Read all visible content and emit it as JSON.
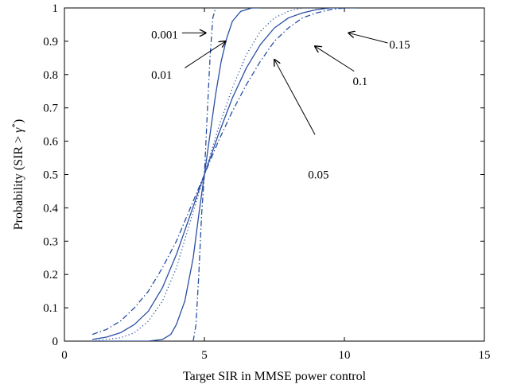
{
  "chart_data": {
    "type": "line",
    "xlabel": "Target SIR in MMSE power control",
    "ylabel_parts": [
      "Probability (SIR > ",
      "γ",
      "*",
      ")"
    ],
    "xlim": [
      0,
      15
    ],
    "ylim": [
      0,
      1
    ],
    "xticks": [
      0,
      5,
      10,
      15
    ],
    "xtick_labels": [
      "0",
      "5",
      "10",
      "15"
    ],
    "yticks": [
      0,
      0.1,
      0.2,
      0.3,
      0.4,
      0.5,
      0.6,
      0.7,
      0.8,
      0.9,
      1
    ],
    "ytick_labels": [
      "0",
      "0.1",
      "0.2",
      "0.3",
      "0.4",
      "0.5",
      "0.6",
      "0.7",
      "0.8",
      "0.9",
      "1"
    ],
    "grid": false,
    "line_color": "#2a4fa3",
    "series": [
      {
        "name": "0.001",
        "style": "dashdot",
        "x": [
          4.6,
          4.7,
          4.8,
          4.9,
          5.0,
          5.1,
          5.2,
          5.3,
          5.4
        ],
        "y": [
          0,
          0.05,
          0.2,
          0.38,
          0.5,
          0.68,
          0.85,
          0.97,
          1.0
        ]
      },
      {
        "name": "0.01",
        "style": "solid",
        "x": [
          1.0,
          2.0,
          3.0,
          3.5,
          3.8,
          4.0,
          4.3,
          4.6,
          4.8,
          5.0,
          5.2,
          5.4,
          5.6,
          5.8,
          6.0,
          6.3,
          6.7,
          7.0
        ],
        "y": [
          0.0,
          0.0,
          0.0,
          0.005,
          0.02,
          0.05,
          0.12,
          0.25,
          0.38,
          0.5,
          0.62,
          0.74,
          0.84,
          0.91,
          0.96,
          0.99,
          1.0,
          1.0
        ]
      },
      {
        "name": "0.05",
        "style": "dotted",
        "x": [
          1.0,
          2.0,
          2.5,
          3.0,
          3.5,
          4.0,
          4.5,
          5.0,
          5.5,
          6.0,
          6.5,
          7.0,
          7.5,
          8.0,
          8.5,
          9.0
        ],
        "y": [
          0.0,
          0.01,
          0.025,
          0.06,
          0.12,
          0.22,
          0.36,
          0.5,
          0.64,
          0.76,
          0.86,
          0.93,
          0.97,
          0.99,
          1.0,
          1.0
        ]
      },
      {
        "name": "0.1",
        "style": "solid",
        "x": [
          1.0,
          1.5,
          2.0,
          2.5,
          3.0,
          3.5,
          4.0,
          4.5,
          5.0,
          5.5,
          6.0,
          6.5,
          7.0,
          7.5,
          8.0,
          8.5,
          9.0,
          9.5,
          10.0
        ],
        "y": [
          0.005,
          0.012,
          0.025,
          0.05,
          0.09,
          0.16,
          0.26,
          0.38,
          0.5,
          0.62,
          0.73,
          0.82,
          0.89,
          0.94,
          0.97,
          0.985,
          0.995,
          1.0,
          1.0
        ]
      },
      {
        "name": "0.15",
        "style": "dashdot",
        "x": [
          1.0,
          1.5,
          2.0,
          2.5,
          3.0,
          3.5,
          4.0,
          4.5,
          5.0,
          5.5,
          6.0,
          6.5,
          7.0,
          7.5,
          8.0,
          8.5,
          9.0,
          9.5,
          10.0,
          10.5
        ],
        "y": [
          0.02,
          0.035,
          0.06,
          0.1,
          0.15,
          0.22,
          0.3,
          0.4,
          0.5,
          0.6,
          0.69,
          0.77,
          0.84,
          0.9,
          0.94,
          0.97,
          0.985,
          0.995,
          1.0,
          1.0
        ]
      }
    ],
    "annotations": [
      {
        "text": "0.001",
        "series": "0.001",
        "label_at": [
          3.1,
          0.92
        ],
        "arrow_from": [
          4.2,
          0.925
        ],
        "arrow_to": [
          5.05,
          0.925
        ]
      },
      {
        "text": "0.01",
        "series": "0.01",
        "label_at": [
          3.1,
          0.8
        ],
        "arrow_from": [
          4.3,
          0.82
        ],
        "arrow_to": [
          5.75,
          0.9
        ]
      },
      {
        "text": "0.05",
        "series": "0.05",
        "label_at": [
          8.7,
          0.5
        ],
        "arrow_from": [
          8.95,
          0.62
        ],
        "arrow_to": [
          7.5,
          0.845
        ]
      },
      {
        "text": "0.1",
        "series": "0.1",
        "label_at": [
          10.3,
          0.78
        ],
        "arrow_from": [
          10.35,
          0.81
        ],
        "arrow_to": [
          8.95,
          0.885
        ]
      },
      {
        "text": "0.15",
        "series": "0.15",
        "label_at": [
          11.6,
          0.89
        ],
        "arrow_from": [
          11.55,
          0.895
        ],
        "arrow_to": [
          10.15,
          0.925
        ]
      }
    ]
  }
}
